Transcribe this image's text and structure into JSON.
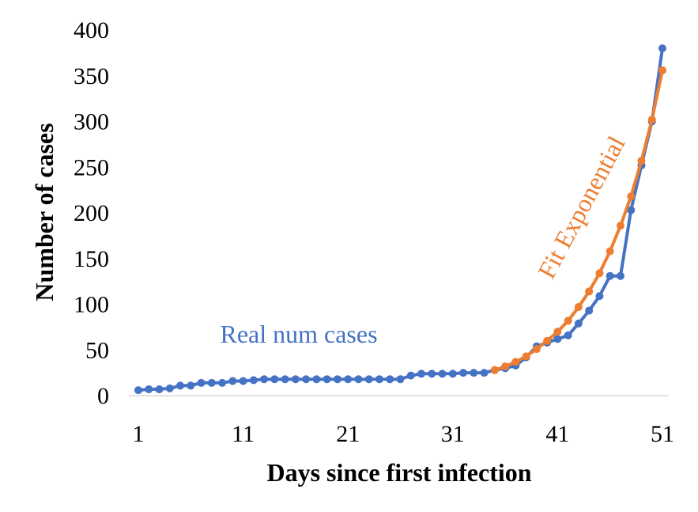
{
  "chart_data": {
    "type": "line",
    "title": "",
    "xlabel": "Days since first infection",
    "ylabel": "Number of cases",
    "xlim": [
      1,
      51
    ],
    "ylim": [
      0,
      400
    ],
    "x_ticks": [
      "1",
      "11",
      "21",
      "31",
      "41",
      "51"
    ],
    "y_ticks": [
      "0",
      "50",
      "100",
      "150",
      "200",
      "250",
      "300",
      "350",
      "400"
    ],
    "grid": false,
    "series": [
      {
        "name": "Real num cases",
        "color": "#4472C4",
        "x": [
          1,
          2,
          3,
          4,
          5,
          6,
          7,
          8,
          9,
          10,
          11,
          12,
          13,
          14,
          15,
          16,
          17,
          18,
          19,
          20,
          21,
          22,
          23,
          24,
          25,
          26,
          27,
          28,
          29,
          30,
          31,
          32,
          33,
          34,
          35,
          36,
          37,
          38,
          39,
          40,
          41,
          42,
          43,
          44,
          45,
          46,
          47,
          48,
          49,
          50,
          51
        ],
        "values": [
          6,
          7,
          7,
          8,
          11,
          11,
          14,
          14,
          14,
          16,
          16,
          17,
          18,
          18,
          18,
          18,
          18,
          18,
          18,
          18,
          18,
          18,
          18,
          18,
          18,
          18,
          22,
          24,
          24,
          24,
          24,
          25,
          25,
          25,
          28,
          30,
          33,
          42,
          54,
          58,
          62,
          66,
          79,
          93,
          109,
          131,
          131,
          203,
          252,
          300,
          380
        ]
      },
      {
        "name": "Fit Exponential",
        "color": "#ED7D31",
        "x": [
          35,
          36,
          37,
          38,
          39,
          40,
          41,
          42,
          43,
          44,
          45,
          46,
          47,
          48,
          49,
          50,
          51
        ],
        "values": [
          28,
          32,
          37,
          43,
          51,
          60,
          70,
          82,
          97,
          114,
          134,
          158,
          186,
          218,
          257,
          302,
          356
        ]
      }
    ]
  }
}
